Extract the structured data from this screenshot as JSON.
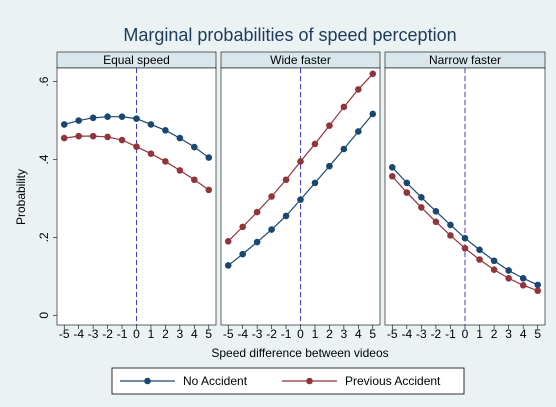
{
  "title": "Marginal probabilities of speed perception",
  "x_label": "Speed difference between videos",
  "y_label": "Probability",
  "chart_data": [
    {
      "type": "line",
      "title": "Equal speed",
      "x": [
        -5,
        -4,
        -3,
        -2,
        -1,
        0,
        1,
        2,
        3,
        4,
        5
      ],
      "series": [
        {
          "name": "No Accident",
          "color": "#1a476f",
          "values": [
            0.49,
            0.5,
            0.507,
            0.51,
            0.51,
            0.505,
            0.49,
            0.475,
            0.455,
            0.432,
            0.405
          ]
        },
        {
          "name": "Previous Accident",
          "color": "#90353b",
          "values": [
            0.455,
            0.46,
            0.46,
            0.458,
            0.45,
            0.433,
            0.415,
            0.395,
            0.372,
            0.348,
            0.322
          ]
        }
      ],
      "xlim": [
        -5.5,
        5.5
      ],
      "ylim": [
        -0.025,
        0.635
      ],
      "xticks": [
        -5,
        -4,
        -3,
        -2,
        -1,
        0,
        1,
        2,
        3,
        4,
        5
      ],
      "yticks": [
        0,
        {
          "value": 0.2,
          "label": ".2"
        },
        {
          "value": 0.4,
          "label": ".4"
        },
        {
          "value": 0.6,
          "label": ".6"
        }
      ],
      "reference_x": 0
    },
    {
      "type": "line",
      "title": "Wide faster",
      "x": [
        -5,
        -4,
        -3,
        -2,
        -1,
        0,
        1,
        2,
        3,
        4,
        5
      ],
      "series": [
        {
          "name": "No Accident",
          "color": "#1a476f",
          "values": [
            0.128,
            0.157,
            0.188,
            0.22,
            0.255,
            0.297,
            0.34,
            0.383,
            0.427,
            0.472,
            0.517
          ]
        },
        {
          "name": "Previous Accident",
          "color": "#90353b",
          "values": [
            0.19,
            0.227,
            0.265,
            0.305,
            0.348,
            0.395,
            0.44,
            0.487,
            0.535,
            0.58,
            0.62
          ]
        }
      ],
      "xlim": [
        -5.5,
        5.5
      ],
      "ylim": [
        -0.025,
        0.635
      ],
      "xticks": [
        -5,
        -4,
        -3,
        -2,
        -1,
        0,
        1,
        2,
        3,
        4,
        5
      ],
      "reference_x": 0
    },
    {
      "type": "line",
      "title": "Narrow faster",
      "x": [
        -5,
        -4,
        -3,
        -2,
        -1,
        0,
        1,
        2,
        3,
        4,
        5
      ],
      "series": [
        {
          "name": "No Accident",
          "color": "#1a476f",
          "values": [
            0.38,
            0.34,
            0.303,
            0.267,
            0.232,
            0.198,
            0.168,
            0.14,
            0.115,
            0.095,
            0.078
          ]
        },
        {
          "name": "Previous Accident",
          "color": "#90353b",
          "values": [
            0.357,
            0.315,
            0.277,
            0.24,
            0.205,
            0.172,
            0.143,
            0.117,
            0.095,
            0.077,
            0.063
          ]
        }
      ],
      "xlim": [
        -5.5,
        5.5
      ],
      "ylim": [
        -0.025,
        0.635
      ],
      "xticks": [
        -5,
        -4,
        -3,
        -2,
        -1,
        0,
        1,
        2,
        3,
        4,
        5
      ],
      "reference_x": 0
    }
  ]
}
